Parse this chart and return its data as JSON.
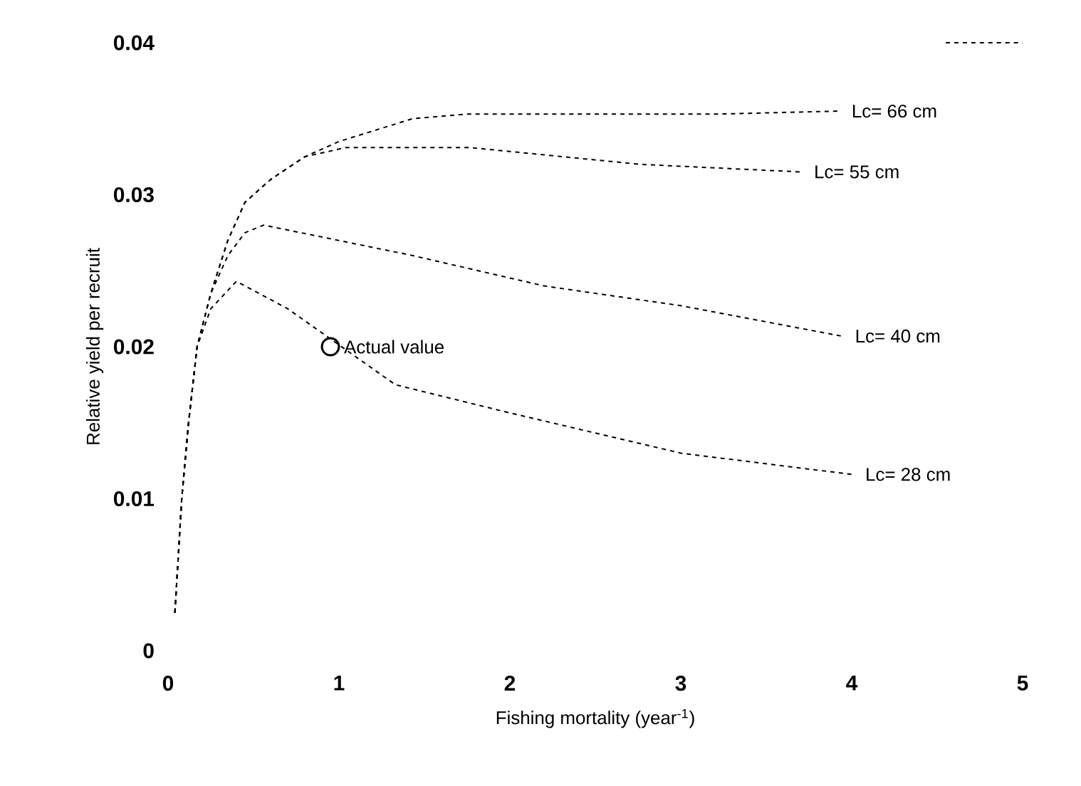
{
  "chart_data": {
    "type": "line",
    "xlabel": "Fishing mortality (year$^{-1}$)",
    "ylabel": "Relative yield per recruit",
    "xlim": [
      0,
      5
    ],
    "ylim": [
      0,
      0.04
    ],
    "xticks": [
      0,
      1,
      2,
      3,
      4,
      5
    ],
    "yticks": [
      0,
      0.01,
      0.02,
      0.03,
      0.04
    ],
    "line_style": "dashed",
    "series": [
      {
        "name": "Lc= 66 cm",
        "color": "#000000",
        "x": [
          0.04,
          0.08,
          0.12,
          0.17,
          0.25,
          0.35,
          0.45,
          0.6,
          0.8,
          1.0,
          1.43,
          1.74,
          2.5,
          3.2,
          3.92
        ],
        "values": [
          0.0025,
          0.01,
          0.015,
          0.02,
          0.0235,
          0.027,
          0.0295,
          0.031,
          0.0325,
          0.0335,
          0.035,
          0.0353,
          0.0353,
          0.0353,
          0.0355
        ]
      },
      {
        "color": "#000000",
        "x": [
          4.55,
          5.0
        ],
        "values": [
          0.04,
          0.04
        ]
      },
      {
        "name": "Lc= 55 cm",
        "color": "#000000",
        "x": [
          0.04,
          0.08,
          0.12,
          0.17,
          0.25,
          0.35,
          0.45,
          0.6,
          0.8,
          1.04,
          1.77,
          2.76,
          3.7
        ],
        "values": [
          0.0025,
          0.01,
          0.015,
          0.02,
          0.0235,
          0.027,
          0.0295,
          0.031,
          0.0325,
          0.0331,
          0.0331,
          0.032,
          0.0315
        ]
      },
      {
        "name": "Lc= 40 cm",
        "color": "#000000",
        "x": [
          0.04,
          0.08,
          0.12,
          0.17,
          0.25,
          0.35,
          0.45,
          0.56,
          1.43,
          2.2,
          3.0,
          3.94
        ],
        "values": [
          0.0025,
          0.01,
          0.015,
          0.02,
          0.0235,
          0.026,
          0.0275,
          0.028,
          0.026,
          0.024,
          0.0227,
          0.0207
        ]
      },
      {
        "name": "Lc= 28 cm",
        "color": "#000000",
        "x": [
          0.04,
          0.08,
          0.12,
          0.17,
          0.25,
          0.4,
          0.7,
          1.33,
          1.98,
          3.0,
          4.0
        ],
        "values": [
          0.0025,
          0.01,
          0.015,
          0.02,
          0.0225,
          0.0243,
          0.0225,
          0.0175,
          0.0157,
          0.013,
          0.0116
        ]
      },
      {
        "type": "scatter",
        "marker": "circle",
        "color": "#000000",
        "x": [
          0.95
        ],
        "values": [
          0.02
        ]
      }
    ],
    "annotations": [
      {
        "text": "Actual value",
        "x": 0.95,
        "y": 0.02
      }
    ]
  }
}
